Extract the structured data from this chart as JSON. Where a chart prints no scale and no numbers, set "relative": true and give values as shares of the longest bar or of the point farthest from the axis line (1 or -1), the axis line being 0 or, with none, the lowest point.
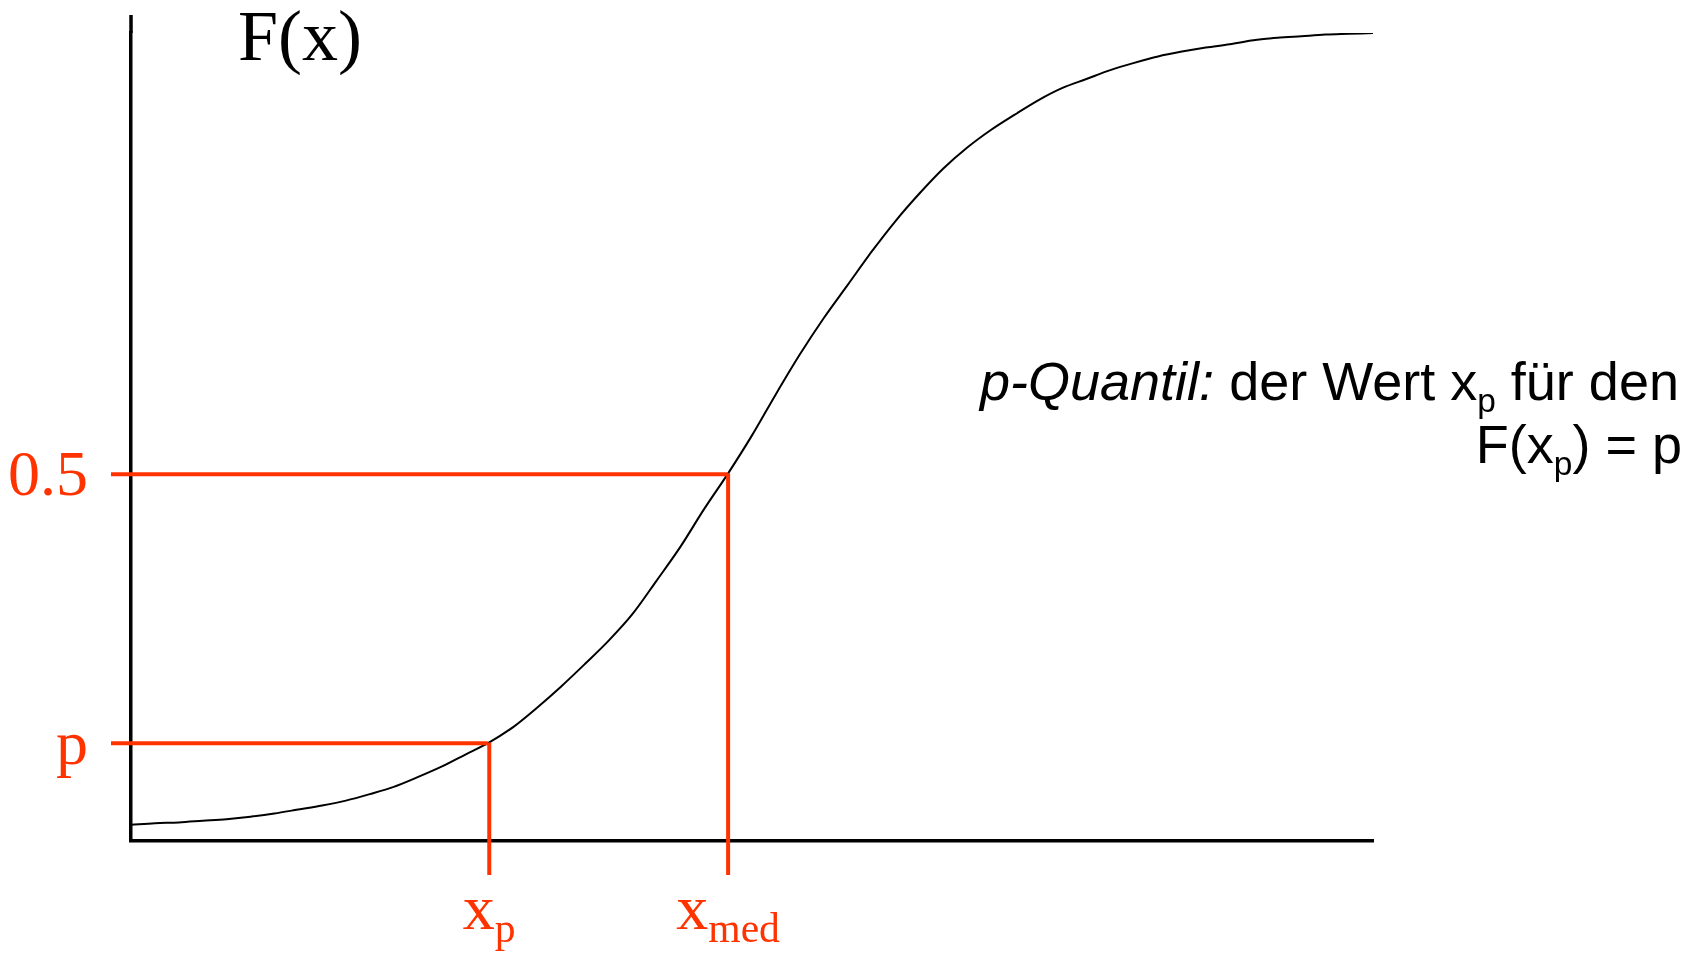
{
  "chart_data": {
    "type": "line",
    "ylabel": "F(x)",
    "annotations": [
      "p-Quantil: der Wert x$_{p}$ für den F(x$_{p}$) = p"
    ],
    "relative": true,
    "marker": "none",
    "color": "#000000",
    "categories": [
      null,
      null,
      null,
      null,
      null,
      null,
      null,
      null,
      null,
      null,
      null,
      null,
      null,
      null,
      null,
      "x$_{p}$",
      null,
      null,
      null,
      null,
      null,
      null,
      null,
      null,
      null,
      "x$_{med}$",
      null,
      null,
      null,
      null,
      null,
      null,
      null,
      null,
      null,
      null,
      null,
      null,
      null,
      null,
      null,
      null,
      null,
      null,
      null,
      null,
      null,
      null,
      null,
      null,
      null,
      null,
      null
    ],
    "values": [
      0.02,
      0.022,
      0.023,
      0.025,
      0.027,
      0.03,
      0.034,
      0.039,
      0.044,
      0.05,
      0.058,
      0.067,
      0.079,
      0.092,
      0.107,
      0.122,
      0.141,
      0.165,
      0.191,
      0.219,
      0.248,
      0.281,
      0.322,
      0.364,
      0.411,
      0.455,
      0.502,
      0.553,
      0.602,
      0.647,
      0.688,
      0.729,
      0.767,
      0.801,
      0.832,
      0.858,
      0.88,
      0.899,
      0.917,
      0.932,
      0.943,
      0.954,
      0.963,
      0.971,
      0.977,
      0.982,
      0.986,
      0.991,
      0.994,
      0.996,
      0.998,
      0.999,
      1
    ],
    "ref_lines": [
      {
        "axis": "y",
        "value": 0.454,
        "label": "0.5",
        "color": "#ff3300"
      },
      {
        "axis": "y",
        "value": 0.121,
        "label": "p",
        "color": "#ff3300"
      },
      {
        "axis": "x",
        "value": "x$_{p}$",
        "color": "#ff3300"
      },
      {
        "axis": "x",
        "value": "x$_{med}$",
        "color": "#ff3300"
      }
    ]
  }
}
